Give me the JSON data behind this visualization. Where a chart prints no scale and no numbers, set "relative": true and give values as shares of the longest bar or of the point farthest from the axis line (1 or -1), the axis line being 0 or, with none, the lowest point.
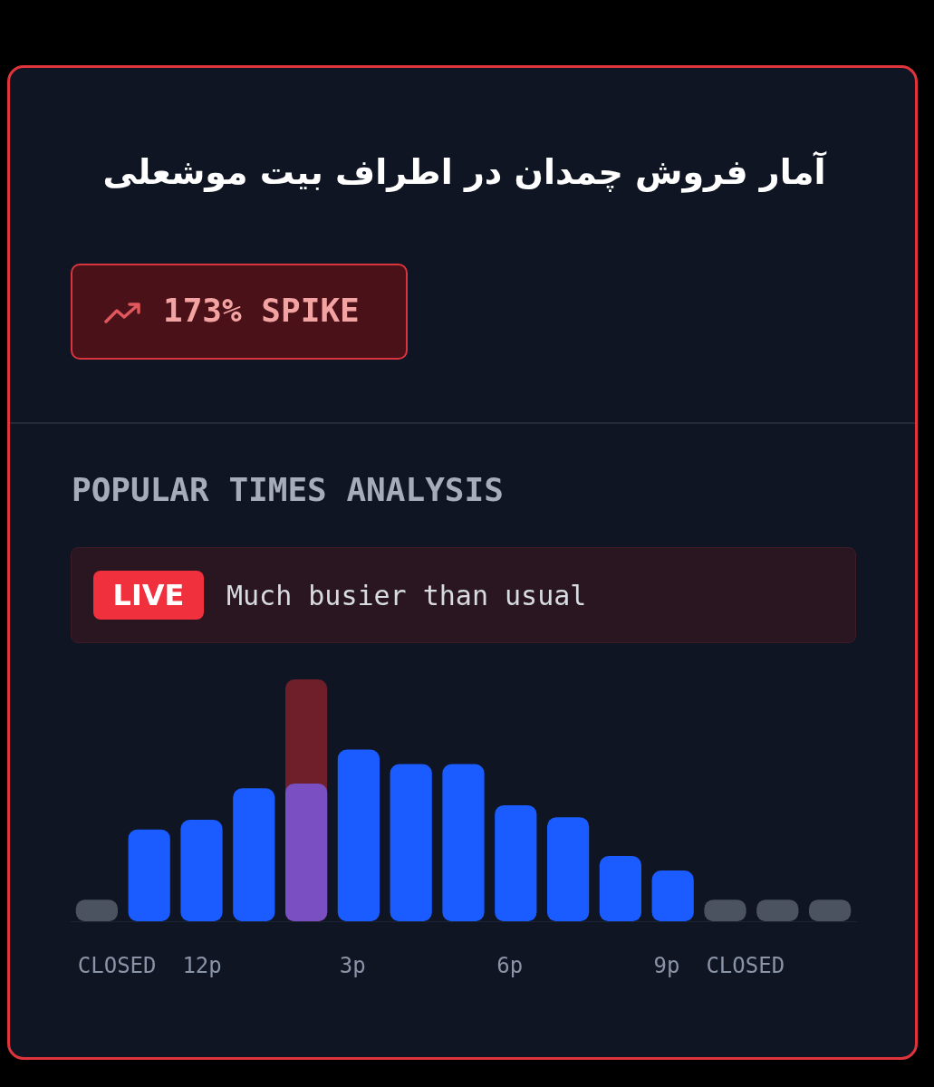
{
  "chart_data": {
    "type": "bar",
    "relative": true,
    "title": "آمار فروش چمدان در اطراف بیت موشعلی",
    "subtitle": "POPULAR TIMES ANALYSIS",
    "annotations": [
      "173% SPIKE",
      "LIVE",
      "Much busier than usual"
    ],
    "categories": [
      "CLOSED",
      null,
      "12p",
      null,
      null,
      "3p",
      null,
      null,
      "6p",
      null,
      null,
      "9p",
      "CLOSED",
      null,
      null
    ],
    "series": [
      {
        "color": "#6e1f2a",
        "values": [
          null,
          null,
          null,
          null,
          1,
          null,
          null,
          null,
          null,
          null,
          null,
          null,
          null,
          null,
          null
        ]
      },
      {
        "colors": [
          "#4b5361",
          "#1a5cff",
          "#1a5cff",
          "#1a5cff",
          "#7a4fc2",
          "#1a5cff",
          "#1a5cff",
          "#1a5cff",
          "#1a5cff",
          "#1a5cff",
          "#1a5cff",
          "#1a5cff",
          "#4b5361",
          "#4b5361",
          "#4b5361"
        ],
        "values": [
          0.09,
          0.38,
          0.42,
          0.55,
          0.57,
          0.71,
          0.65,
          0.65,
          0.48,
          0.43,
          0.27,
          0.21,
          0.09,
          0.09,
          0.09
        ]
      }
    ]
  }
}
